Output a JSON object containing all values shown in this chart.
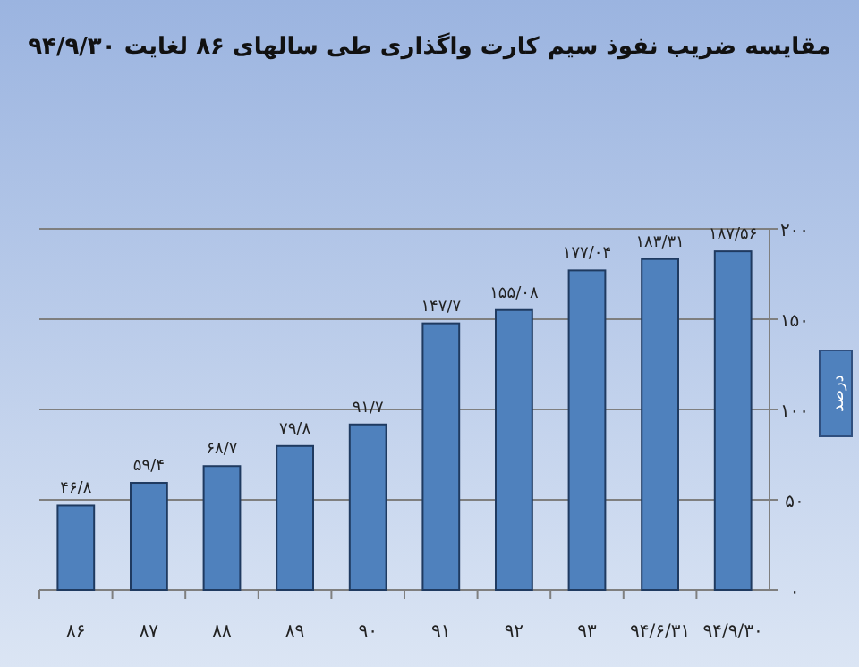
{
  "chart_data": {
    "type": "bar",
    "title": "مقایسه ضریب نفوذ سیم کارت واگذاری طی سالهای ۸۶ لغایت ۹۴/۹/۳۰",
    "ylabel": "درصد",
    "categories": [
      "۸۶",
      "۸۷",
      "۸۸",
      "۸۹",
      "۹۰",
      "۹۱",
      "۹۲",
      "۹۳",
      "۹۴/۶/۳۱",
      "۹۴/۹/۳۰"
    ],
    "values": [
      46.8,
      59.4,
      68.7,
      79.8,
      91.7,
      147.7,
      155.08,
      177.04,
      183.31,
      187.56
    ],
    "value_labels": [
      "۴۶/۸",
      "۵۹/۴",
      "۶۸/۷",
      "۷۹/۸",
      "۹۱/۷",
      "۱۴۷/۷",
      "۱۵۵/۰۸",
      "۱۷۷/۰۴",
      "۱۸۳/۳۱",
      "۱۸۷/۵۶"
    ],
    "color": "#4f81bd",
    "ylim": [
      0,
      200
    ],
    "yticks": [
      {
        "value": 0,
        "label": "۰"
      },
      {
        "value": 50,
        "label": "۵۰"
      },
      {
        "value": 100,
        "label": "۱۰۰"
      },
      {
        "value": 150,
        "label": "۱۵۰"
      },
      {
        "value": 200,
        "label": "۲۰۰"
      }
    ],
    "grid": "y"
  }
}
